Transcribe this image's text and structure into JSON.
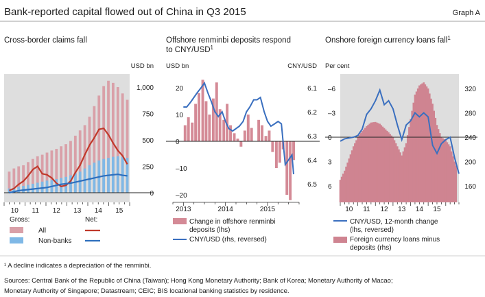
{
  "header": {
    "title": "Bank-reported capital flowed out of China in Q3 2015",
    "graph_label": "Graph A"
  },
  "footnote": "¹ A decline indicates a depreciation of the renminbi.",
  "sources_line1": "Sources: Central Bank of the Republic of China (Taiwan); Hong Kong Monetary Authority; Bank of Korea; Monetary Authority of Macao;",
  "sources_line2": "Monetary Authority of Singapore; Datastream; CEIC; BIS locational banking statistics by residence.",
  "colors": {
    "all_bar": "#d9a0a8",
    "nonbank_bar": "#7fb8e6",
    "net_all": "#c0392b",
    "net_nonbank": "#2e6fbd",
    "deposit_bar": "#d48a96",
    "cny_line": "#3a6fbf",
    "loan_bar": "#cf8491"
  },
  "chart_data": [
    {
      "type": "bar",
      "title": "Cross-border claims fall",
      "ylabel": "USD bn",
      "ylim": [
        -50,
        1150
      ],
      "yticks": [
        0,
        250,
        500,
        750,
        1000
      ],
      "ytick_labels": [
        "0",
        "250",
        "500",
        "750",
        "1,000"
      ],
      "xtick_labels": [
        "10",
        "11",
        "12",
        "13",
        "14",
        "15"
      ],
      "x_start": 2009.5,
      "x_end": 2015.5,
      "grid": false,
      "legend_gross_title": "Gross:",
      "legend_net_title": "Net:",
      "legend_all": "All",
      "legend_nonbank": "Non-banks",
      "series": [
        {
          "name": "All",
          "kind": "bar",
          "values": [
            200,
            230,
            250,
            260,
            290,
            320,
            345,
            360,
            380,
            400,
            415,
            440,
            460,
            490,
            540,
            590,
            640,
            720,
            820,
            920,
            1010,
            1060,
            1040,
            1000,
            940,
            880
          ]
        },
        {
          "name": "Non-banks",
          "kind": "bar",
          "values": [
            40,
            45,
            55,
            65,
            75,
            85,
            95,
            105,
            115,
            120,
            130,
            140,
            150,
            165,
            185,
            200,
            230,
            260,
            285,
            305,
            320,
            330,
            340,
            345,
            340,
            330
          ]
        },
        {
          "name": "All",
          "kind": "line",
          "values": [
            20,
            40,
            80,
            110,
            160,
            220,
            250,
            180,
            170,
            140,
            90,
            60,
            70,
            110,
            190,
            260,
            360,
            450,
            520,
            600,
            610,
            550,
            470,
            400,
            350,
            270
          ]
        },
        {
          "name": "Non-banks",
          "kind": "line",
          "values": [
            0,
            10,
            20,
            25,
            30,
            35,
            40,
            45,
            50,
            60,
            70,
            80,
            85,
            90,
            100,
            110,
            120,
            130,
            140,
            150,
            160,
            165,
            170,
            175,
            165,
            160
          ]
        }
      ]
    },
    {
      "type": "bar",
      "title": "Offshore renminbi deposits respond to CNY/USD",
      "title_line1": "Offshore renminbi deposits respond",
      "title_line2": "to CNY/USD",
      "title_sup": "1",
      "ylabel_left": "USD bn",
      "ylabel_right": "CNY/USD",
      "ylim": [
        -24,
        30
      ],
      "yticks_left": [
        -20,
        -10,
        0,
        10,
        20
      ],
      "ytick_labels_left": [
        "–20",
        "–10",
        "0",
        "10",
        "20"
      ],
      "y2lim": [
        6.05,
        6.53
      ],
      "y2_reversed": true,
      "yticks_right": [
        6.1,
        6.2,
        6.3,
        6.4,
        6.5
      ],
      "ytick_labels_right": [
        "6.1",
        "6.2",
        "6.3",
        "6.4",
        "6.5"
      ],
      "xtick_labels": [
        "2013",
        "2014",
        "2015"
      ],
      "x_start": 2012.75,
      "x_end": 2015.75,
      "legend_bar": "Change in offshore renminbi deposits (lhs)",
      "legend_bar_line1": "Change in offshore renminbi",
      "legend_bar_line2": "deposits (lhs)",
      "legend_line": "CNY/USD (rhs, reversed)",
      "series": [
        {
          "name": "Change in offshore renminbi deposits (lhs)",
          "kind": "bar",
          "x": [
            2013.04,
            2013.12,
            2013.21,
            2013.29,
            2013.37,
            2013.46,
            2013.54,
            2013.62,
            2013.71,
            2013.79,
            2013.87,
            2013.96,
            2014.04,
            2014.12,
            2014.21,
            2014.29,
            2014.37,
            2014.46,
            2014.54,
            2014.62,
            2014.71,
            2014.79,
            2014.87,
            2014.96,
            2015.04,
            2015.12,
            2015.21,
            2015.29,
            2015.37,
            2015.46,
            2015.54,
            2015.62
          ],
          "values": [
            6,
            9,
            7,
            14,
            18,
            23,
            15,
            10,
            16,
            22,
            12,
            8,
            14,
            6,
            3,
            1,
            -2,
            4,
            10,
            5,
            0,
            8,
            6,
            2,
            4,
            -4,
            -10,
            -8,
            -3,
            -20,
            -22,
            -7
          ]
        },
        {
          "name": "CNY/USD (rhs, reversed)",
          "kind": "line",
          "x": [
            2013.0,
            2013.08,
            2013.17,
            2013.25,
            2013.33,
            2013.42,
            2013.5,
            2013.58,
            2013.67,
            2013.75,
            2013.83,
            2013.92,
            2014.0,
            2014.08,
            2014.17,
            2014.25,
            2014.33,
            2014.42,
            2014.5,
            2014.58,
            2014.67,
            2014.75,
            2014.83,
            2014.92,
            2015.0,
            2015.08,
            2015.17,
            2015.25,
            2015.33,
            2015.42,
            2015.5,
            2015.58,
            2015.62
          ],
          "values": [
            6.18,
            6.18,
            6.16,
            6.14,
            6.12,
            6.1,
            6.08,
            6.12,
            6.16,
            6.2,
            6.22,
            6.2,
            6.24,
            6.27,
            6.28,
            6.27,
            6.26,
            6.24,
            6.2,
            6.18,
            6.15,
            6.15,
            6.14,
            6.2,
            6.24,
            6.26,
            6.25,
            6.24,
            6.25,
            6.42,
            6.4,
            6.38,
            6.46
          ]
        }
      ]
    },
    {
      "type": "bar",
      "title": "Onshore foreign currency loans fall",
      "title_sup": "1",
      "ylabel_left": "Per cent",
      "ylim": [
        -7,
        7
      ],
      "y_reversed": true,
      "yticks_left": [
        -6,
        -3,
        0,
        3,
        6
      ],
      "ytick_labels_left": [
        "–6",
        "–3",
        "0",
        "3",
        "6"
      ],
      "y2lim": [
        146,
        334
      ],
      "yticks_right": [
        160,
        200,
        240,
        280,
        320
      ],
      "ytick_labels_right": [
        "160",
        "200",
        "240",
        "280",
        "320"
      ],
      "xtick_labels": [
        "10",
        "11",
        "12",
        "13",
        "14",
        "15"
      ],
      "x_start": 2009.0,
      "x_end": 2015.75,
      "legend_line": "CNY/USD, 12-month change (lhs, reversed)",
      "legend_line_line1": "CNY/USD, 12-month change",
      "legend_line_line2": "(lhs, reversed)",
      "legend_bar": "Foreign currency loans minus deposits (rhs)",
      "legend_bar_line1": "Foreign currency loans minus",
      "legend_bar_line2": "deposits (rhs)",
      "series": [
        {
          "name": "CNY/USD, 12-month change (lhs, reversed)",
          "kind": "line",
          "x": [
            2009.0,
            2009.25,
            2009.5,
            2009.75,
            2010.0,
            2010.25,
            2010.5,
            2010.75,
            2011.0,
            2011.25,
            2011.5,
            2011.75,
            2012.0,
            2012.25,
            2012.5,
            2012.75,
            2013.0,
            2013.25,
            2013.5,
            2013.75,
            2014.0,
            2014.25,
            2014.5,
            2014.75,
            2015.0,
            2015.25,
            2015.5,
            2015.75
          ],
          "values": [
            0.5,
            0.2,
            0.1,
            0.0,
            -0.2,
            -1.0,
            -2.8,
            -3.5,
            -4.5,
            -5.8,
            -4.0,
            -4.5,
            -3.5,
            -1.5,
            0.3,
            -1.5,
            -2.0,
            -3.0,
            -2.5,
            -3.0,
            -2.5,
            1.0,
            2.0,
            0.8,
            0.3,
            0.0,
            2.5,
            4.5
          ]
        },
        {
          "name": "Foreign currency loans minus deposits (rhs)",
          "kind": "bar",
          "x": [
            2009.0,
            2009.25,
            2009.5,
            2009.75,
            2010.0,
            2010.25,
            2010.5,
            2010.75,
            2011.0,
            2011.25,
            2011.5,
            2011.75,
            2012.0,
            2012.25,
            2012.5,
            2012.75,
            2013.0,
            2013.25,
            2013.5,
            2013.75,
            2014.0,
            2014.25,
            2014.5,
            2014.75,
            2015.0,
            2015.25,
            2015.5,
            2015.75
          ],
          "values": [
            170,
            185,
            205,
            225,
            240,
            250,
            258,
            264,
            265,
            262,
            255,
            248,
            240,
            225,
            210,
            230,
            270,
            310,
            325,
            330,
            320,
            295,
            260,
            240,
            235,
            225,
            200,
            180
          ]
        }
      ]
    }
  ]
}
